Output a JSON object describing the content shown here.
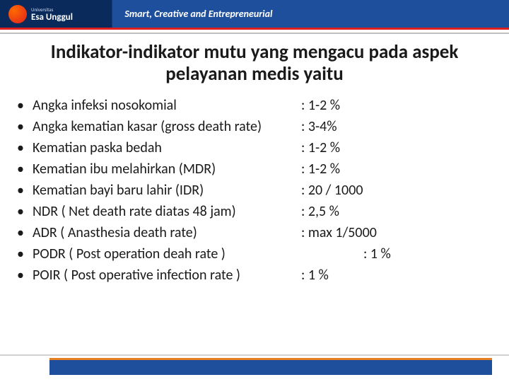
{
  "header": {
    "logo_name": "Esa Unggul",
    "logo_sub": "Universitas",
    "tagline": "Smart, Creative and Entrepreneurial"
  },
  "title": "Indikator-indikator mutu yang mengacu pada aspek pelayanan medis yaitu",
  "items": [
    {
      "label": "Angka infeksi nosokomial",
      "value": ": 1-2 %"
    },
    {
      "label": "Angka kematian kasar (gross death rate)",
      "value": ": 3-4%"
    },
    {
      "label": "Kematian paska bedah",
      "value": ": 1-2 %"
    },
    {
      "label": "Kematian ibu melahirkan (MDR)",
      "value": ": 1-2 %"
    },
    {
      "label": "Kematian bayi baru lahir (IDR)",
      "value": ": 20 / 1000"
    },
    {
      "label": "NDR ( Net death rate diatas 48 jam)",
      "value": ": 2,5 %"
    },
    {
      "label": "ADR ( Anasthesia death rate)",
      "value": ": max 1/5000"
    },
    {
      "label": "PODR ( Post operation deah rate )",
      "value": ": 1 %",
      "indent": true
    },
    {
      "label": "POIR ( Post operative infection rate )",
      "value": ": 1 %"
    }
  ],
  "colors": {
    "header_dark": "#0a2a5c",
    "header_blue": "#1e4f9c",
    "accent_red": "#e02020",
    "accent_orange": "#e67e22",
    "text": "#1a1a1a"
  }
}
